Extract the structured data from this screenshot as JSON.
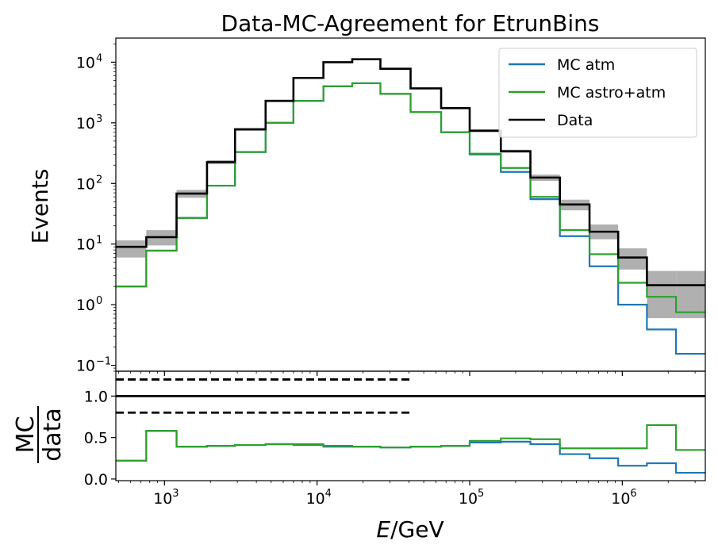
{
  "chart_data": {
    "type": "line",
    "title": "Data-MC-Agreement for EtrunBins",
    "xlabel_italic": "E",
    "xlabel_rest": "/GeV",
    "ylabel": "Events",
    "ratio_ylabel_num": "MC",
    "ratio_ylabel_den": "data",
    "xscale": "log",
    "yscale": "log",
    "xlim": [
      480,
      3500000
    ],
    "ylim": [
      0.08,
      25000
    ],
    "ratio_ylim": [
      -0.02,
      1.3
    ],
    "x_ticks": [
      {
        "value": 1000,
        "base": "10",
        "exp": "3"
      },
      {
        "value": 10000,
        "base": "10",
        "exp": "4"
      },
      {
        "value": 100000,
        "base": "10",
        "exp": "5"
      },
      {
        "value": 1000000,
        "base": "10",
        "exp": "6"
      }
    ],
    "y_ticks": [
      {
        "value": 10000,
        "base": "10",
        "exp": "4"
      },
      {
        "value": 1000,
        "base": "10",
        "exp": "3"
      },
      {
        "value": 100,
        "base": "10",
        "exp": "2"
      },
      {
        "value": 10,
        "base": "10",
        "exp": "1"
      },
      {
        "value": 1,
        "base": "10",
        "exp": "0"
      },
      {
        "value": 0.1,
        "base": "10",
        "exp": "−1"
      }
    ],
    "ratio_ticks": [
      {
        "value": 0.0,
        "label": "0.0"
      },
      {
        "value": 0.5,
        "label": "0.5"
      },
      {
        "value": 1.0,
        "label": "1.0"
      }
    ],
    "bin_edges": [
      480,
      760,
      1200,
      1900,
      2900,
      4600,
      7000,
      11000,
      17000,
      26000,
      41000,
      65000,
      100000,
      160000,
      250000,
      390000,
      610000,
      940000,
      1450000,
      2250000,
      3500000
    ],
    "series": [
      {
        "name": "MC atm",
        "color": "#1f77b4",
        "values": [
          2.0,
          7.8,
          27,
          92,
          330,
          1000,
          2300,
          4000,
          4500,
          3000,
          1500,
          700,
          300,
          155,
          55,
          13.5,
          4.3,
          1.0,
          0.39,
          0.155
        ]
      },
      {
        "name": "MC astro+atm",
        "color": "#2ca02c",
        "values": [
          2.0,
          7.8,
          27,
          92,
          330,
          1000,
          2300,
          4000,
          4500,
          3000,
          1500,
          700,
          310,
          180,
          60,
          17,
          6.8,
          2.3,
          1.35,
          0.75
        ]
      },
      {
        "name": "Data",
        "color": "#000000",
        "values": [
          9,
          13,
          68,
          225,
          780,
          2300,
          5500,
          10000,
          11200,
          7800,
          3700,
          1750,
          740,
          340,
          125,
          45,
          16,
          6.0,
          2.1,
          2.1
        ]
      }
    ],
    "data_band": {
      "color": "#b0b0b0",
      "low": [
        6,
        9.5,
        58,
        208,
        740,
        2200,
        5350,
        9800,
        11000,
        7650,
        3600,
        1680,
        700,
        320,
        110,
        36,
        12,
        3.8,
        0.6,
        0.6
      ],
      "high": [
        11.5,
        17,
        78,
        242,
        820,
        2400,
        5650,
        10200,
        11400,
        7950,
        3800,
        1820,
        780,
        360,
        140,
        54,
        21,
        8.5,
        3.6,
        3.6
      ]
    },
    "ratio_series": [
      {
        "name": "MC atm",
        "color": "#1f77b4",
        "values": [
          0.22,
          0.58,
          0.39,
          0.4,
          0.41,
          0.42,
          0.41,
          0.39,
          0.39,
          0.38,
          0.39,
          0.4,
          0.44,
          0.45,
          0.42,
          0.3,
          0.25,
          0.16,
          0.19,
          0.075
        ]
      },
      {
        "name": "MC astro+atm",
        "color": "#2ca02c",
        "values": [
          0.22,
          0.58,
          0.39,
          0.4,
          0.41,
          0.42,
          0.42,
          0.4,
          0.39,
          0.38,
          0.39,
          0.4,
          0.46,
          0.49,
          0.48,
          0.37,
          0.37,
          0.37,
          0.65,
          0.35
        ]
      }
    ],
    "ratio_reference": {
      "value": 1.0
    },
    "ratio_dashed": [
      {
        "value": 1.2,
        "x_end": 41000
      },
      {
        "value": 0.8,
        "x_end": 41000
      }
    ],
    "legend": {
      "position": "top-right",
      "entries": [
        "MC atm",
        "MC astro+atm",
        "Data"
      ]
    }
  }
}
